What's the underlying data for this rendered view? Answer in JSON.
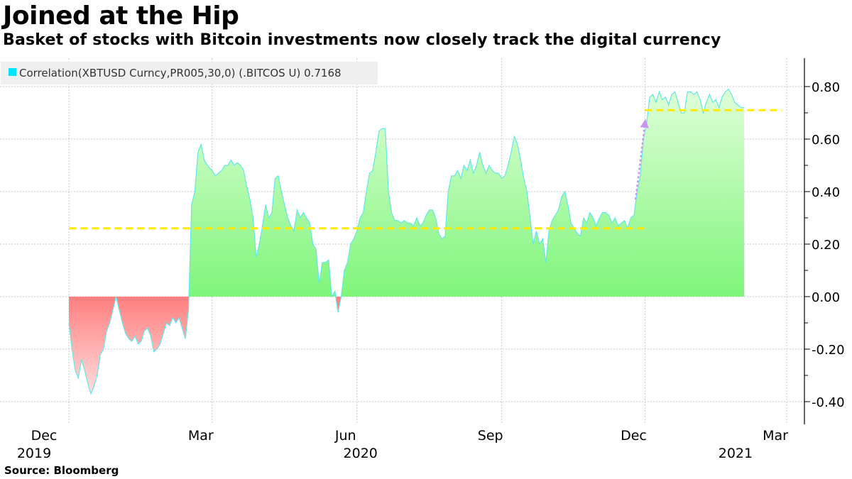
{
  "header": {
    "title": "Joined at the Hip",
    "subtitle": "Basket of stocks with Bitcoin investments now closely track the digital currency"
  },
  "footer": {
    "source": "Source: Bloomberg"
  },
  "colors": {
    "positive_fill_top": "#e0ffd9",
    "positive_fill_bottom": "#7ff57a",
    "negative_fill_top": "#ff7f7f",
    "negative_fill_bottom": "#ffe5e5",
    "line": "#60e8e8",
    "reference_line": "#ffea00",
    "arrow": "#c896f0",
    "legend_swatch": "#00e5ff",
    "legend_bg": "#efefef",
    "grid": "#c8c8c8"
  },
  "chart_data": {
    "type": "area",
    "legend": {
      "label": "Correlation(XBTUSD Curncy,PR005,30,0) (.BITCOS U) 0.7168",
      "placement": "top-left"
    },
    "y_axis": {
      "position": "right",
      "range": [
        -0.48,
        0.9
      ],
      "ticks": [
        -0.4,
        -0.2,
        0.0,
        0.2,
        0.4,
        0.6,
        0.8
      ],
      "tick_labels": [
        "-0.40",
        "-0.20",
        "0.00",
        "0.20",
        "0.40",
        "0.60",
        "0.80"
      ]
    },
    "x_axis": {
      "range": [
        "2019-11-15",
        "2021-03-01"
      ],
      "tick_labels": [
        {
          "date": "2019-12-01",
          "label": "Dec",
          "year": "2019"
        },
        {
          "date": "2020-03-01",
          "label": "Mar",
          "year": ""
        },
        {
          "date": "2020-06-01",
          "label": "Jun",
          "year": "2020"
        },
        {
          "date": "2020-09-01",
          "label": "Sep",
          "year": ""
        },
        {
          "date": "2020-12-01",
          "label": "Dec",
          "year": ""
        },
        {
          "date": "2021-03-01",
          "label": "Mar",
          "year": "2021"
        }
      ]
    },
    "grid": true,
    "reference_lines": [
      {
        "value": 0.26,
        "from": "2019-12-01",
        "to": "2020-12-01"
      },
      {
        "value": 0.71,
        "from": "2020-12-01",
        "to": "2021-02-26"
      }
    ],
    "annotation_arrow": {
      "from": [
        "2020-11-25",
        0.37
      ],
      "to": [
        "2020-12-01",
        0.66
      ]
    },
    "series": [
      {
        "name": "Correlation(XBTUSD Curncy,PR005,30,0) (.BITCOS U)",
        "last_value": 0.7168,
        "points": [
          [
            "2019-12-01",
            -0.1
          ],
          [
            "2019-12-03",
            -0.2
          ],
          [
            "2019-12-05",
            -0.28
          ],
          [
            "2019-12-07",
            -0.31
          ],
          [
            "2019-12-09",
            -0.24
          ],
          [
            "2019-12-11",
            -0.28
          ],
          [
            "2019-12-13",
            -0.33
          ],
          [
            "2019-12-15",
            -0.37
          ],
          [
            "2019-12-17",
            -0.34
          ],
          [
            "2019-12-19",
            -0.3
          ],
          [
            "2019-12-21",
            -0.22
          ],
          [
            "2019-12-23",
            -0.2
          ],
          [
            "2019-12-25",
            -0.13
          ],
          [
            "2019-12-27",
            -0.1
          ],
          [
            "2019-12-29",
            -0.05
          ],
          [
            "2019-12-31",
            0.0
          ],
          [
            "2020-01-02",
            -0.05
          ],
          [
            "2020-01-04",
            -0.1
          ],
          [
            "2020-01-06",
            -0.14
          ],
          [
            "2020-01-08",
            -0.16
          ],
          [
            "2020-01-10",
            -0.17
          ],
          [
            "2020-01-12",
            -0.15
          ],
          [
            "2020-01-14",
            -0.18
          ],
          [
            "2020-01-16",
            -0.17
          ],
          [
            "2020-01-18",
            -0.13
          ],
          [
            "2020-01-20",
            -0.12
          ],
          [
            "2020-01-22",
            -0.15
          ],
          [
            "2020-01-24",
            -0.21
          ],
          [
            "2020-01-26",
            -0.2
          ],
          [
            "2020-01-28",
            -0.18
          ],
          [
            "2020-01-30",
            -0.14
          ],
          [
            "2020-02-01",
            -0.1
          ],
          [
            "2020-02-03",
            -0.11
          ],
          [
            "2020-02-05",
            -0.08
          ],
          [
            "2020-02-07",
            -0.1
          ],
          [
            "2020-02-09",
            -0.08
          ],
          [
            "2020-02-11",
            -0.12
          ],
          [
            "2020-02-13",
            -0.16
          ],
          [
            "2020-02-15",
            -0.05
          ],
          [
            "2020-02-17",
            0.35
          ],
          [
            "2020-02-19",
            0.4
          ],
          [
            "2020-02-21",
            0.55
          ],
          [
            "2020-02-23",
            0.58
          ],
          [
            "2020-02-25",
            0.52
          ],
          [
            "2020-02-27",
            0.5
          ],
          [
            "2020-03-01",
            0.48
          ],
          [
            "2020-03-03",
            0.46
          ],
          [
            "2020-03-05",
            0.47
          ],
          [
            "2020-03-07",
            0.48
          ],
          [
            "2020-03-09",
            0.5
          ],
          [
            "2020-03-11",
            0.5
          ],
          [
            "2020-03-13",
            0.52
          ],
          [
            "2020-03-15",
            0.5
          ],
          [
            "2020-03-17",
            0.51
          ],
          [
            "2020-03-19",
            0.5
          ],
          [
            "2020-03-21",
            0.48
          ],
          [
            "2020-03-23",
            0.42
          ],
          [
            "2020-03-25",
            0.37
          ],
          [
            "2020-03-27",
            0.3
          ],
          [
            "2020-03-29",
            0.15
          ],
          [
            "2020-03-31",
            0.2
          ],
          [
            "2020-04-02",
            0.27
          ],
          [
            "2020-04-04",
            0.35
          ],
          [
            "2020-04-06",
            0.3
          ],
          [
            "2020-04-08",
            0.32
          ],
          [
            "2020-04-10",
            0.45
          ],
          [
            "2020-04-12",
            0.46
          ],
          [
            "2020-04-14",
            0.4
          ],
          [
            "2020-04-16",
            0.35
          ],
          [
            "2020-04-18",
            0.3
          ],
          [
            "2020-04-20",
            0.27
          ],
          [
            "2020-04-22",
            0.25
          ],
          [
            "2020-04-24",
            0.33
          ],
          [
            "2020-04-26",
            0.3
          ],
          [
            "2020-04-28",
            0.32
          ],
          [
            "2020-04-30",
            0.3
          ],
          [
            "2020-05-02",
            0.28
          ],
          [
            "2020-05-04",
            0.2
          ],
          [
            "2020-05-06",
            0.18
          ],
          [
            "2020-05-08",
            0.05
          ],
          [
            "2020-05-10",
            0.13
          ],
          [
            "2020-05-12",
            0.13
          ],
          [
            "2020-05-14",
            0.14
          ],
          [
            "2020-05-16",
            0.0
          ],
          [
            "2020-05-18",
            0.02
          ],
          [
            "2020-05-20",
            -0.06
          ],
          [
            "2020-05-22",
            0.0
          ],
          [
            "2020-05-24",
            0.1
          ],
          [
            "2020-05-26",
            0.13
          ],
          [
            "2020-05-28",
            0.2
          ],
          [
            "2020-05-30",
            0.22
          ],
          [
            "2020-06-01",
            0.25
          ],
          [
            "2020-06-03",
            0.3
          ],
          [
            "2020-06-05",
            0.32
          ],
          [
            "2020-06-07",
            0.4
          ],
          [
            "2020-06-09",
            0.47
          ],
          [
            "2020-06-11",
            0.48
          ],
          [
            "2020-06-13",
            0.55
          ],
          [
            "2020-06-15",
            0.63
          ],
          [
            "2020-06-17",
            0.64
          ],
          [
            "2020-06-19",
            0.64
          ],
          [
            "2020-06-21",
            0.4
          ],
          [
            "2020-06-23",
            0.32
          ],
          [
            "2020-06-25",
            0.29
          ],
          [
            "2020-06-27",
            0.29
          ],
          [
            "2020-06-29",
            0.28
          ],
          [
            "2020-07-01",
            0.29
          ],
          [
            "2020-07-03",
            0.28
          ],
          [
            "2020-07-05",
            0.28
          ],
          [
            "2020-07-07",
            0.27
          ],
          [
            "2020-07-09",
            0.3
          ],
          [
            "2020-07-11",
            0.27
          ],
          [
            "2020-07-13",
            0.28
          ],
          [
            "2020-07-15",
            0.31
          ],
          [
            "2020-07-17",
            0.33
          ],
          [
            "2020-07-19",
            0.33
          ],
          [
            "2020-07-21",
            0.3
          ],
          [
            "2020-07-23",
            0.24
          ],
          [
            "2020-07-25",
            0.22
          ],
          [
            "2020-07-27",
            0.23
          ],
          [
            "2020-07-29",
            0.4
          ],
          [
            "2020-07-31",
            0.46
          ],
          [
            "2020-08-02",
            0.46
          ],
          [
            "2020-08-04",
            0.48
          ],
          [
            "2020-08-06",
            0.45
          ],
          [
            "2020-08-08",
            0.5
          ],
          [
            "2020-08-10",
            0.48
          ],
          [
            "2020-08-12",
            0.52
          ],
          [
            "2020-08-14",
            0.47
          ],
          [
            "2020-08-16",
            0.5
          ],
          [
            "2020-08-18",
            0.55
          ],
          [
            "2020-08-20",
            0.5
          ],
          [
            "2020-08-22",
            0.47
          ],
          [
            "2020-08-24",
            0.5
          ],
          [
            "2020-08-26",
            0.48
          ],
          [
            "2020-08-28",
            0.47
          ],
          [
            "2020-08-30",
            0.47
          ],
          [
            "2020-09-01",
            0.45
          ],
          [
            "2020-09-03",
            0.46
          ],
          [
            "2020-09-05",
            0.5
          ],
          [
            "2020-09-07",
            0.55
          ],
          [
            "2020-09-09",
            0.61
          ],
          [
            "2020-09-11",
            0.58
          ],
          [
            "2020-09-13",
            0.52
          ],
          [
            "2020-09-15",
            0.45
          ],
          [
            "2020-09-17",
            0.4
          ],
          [
            "2020-09-19",
            0.3
          ],
          [
            "2020-09-21",
            0.2
          ],
          [
            "2020-09-23",
            0.25
          ],
          [
            "2020-09-25",
            0.2
          ],
          [
            "2020-09-27",
            0.22
          ],
          [
            "2020-09-29",
            0.13
          ],
          [
            "2020-10-01",
            0.25
          ],
          [
            "2020-10-03",
            0.29
          ],
          [
            "2020-10-05",
            0.31
          ],
          [
            "2020-10-07",
            0.33
          ],
          [
            "2020-10-09",
            0.38
          ],
          [
            "2020-10-11",
            0.4
          ],
          [
            "2020-10-13",
            0.35
          ],
          [
            "2020-10-15",
            0.28
          ],
          [
            "2020-10-17",
            0.26
          ],
          [
            "2020-10-19",
            0.24
          ],
          [
            "2020-10-21",
            0.23
          ],
          [
            "2020-10-23",
            0.3
          ],
          [
            "2020-10-25",
            0.28
          ],
          [
            "2020-10-27",
            0.32
          ],
          [
            "2020-10-29",
            0.3
          ],
          [
            "2020-10-31",
            0.27
          ],
          [
            "2020-11-02",
            0.3
          ],
          [
            "2020-11-04",
            0.32
          ],
          [
            "2020-11-06",
            0.32
          ],
          [
            "2020-11-08",
            0.31
          ],
          [
            "2020-11-10",
            0.28
          ],
          [
            "2020-11-12",
            0.3
          ],
          [
            "2020-11-14",
            0.27
          ],
          [
            "2020-11-16",
            0.28
          ],
          [
            "2020-11-18",
            0.29
          ],
          [
            "2020-11-20",
            0.26
          ],
          [
            "2020-11-22",
            0.3
          ],
          [
            "2020-11-24",
            0.31
          ],
          [
            "2020-11-26",
            0.4
          ],
          [
            "2020-11-28",
            0.46
          ],
          [
            "2020-11-30",
            0.6
          ],
          [
            "2020-12-02",
            0.66
          ],
          [
            "2020-12-04",
            0.76
          ],
          [
            "2020-12-06",
            0.77
          ],
          [
            "2020-12-08",
            0.74
          ],
          [
            "2020-12-10",
            0.78
          ],
          [
            "2020-12-12",
            0.75
          ],
          [
            "2020-12-14",
            0.76
          ],
          [
            "2020-12-16",
            0.73
          ],
          [
            "2020-12-18",
            0.77
          ],
          [
            "2020-12-20",
            0.78
          ],
          [
            "2020-12-22",
            0.74
          ],
          [
            "2020-12-24",
            0.7
          ],
          [
            "2020-12-26",
            0.7
          ],
          [
            "2020-12-28",
            0.78
          ],
          [
            "2020-12-30",
            0.78
          ],
          [
            "2021-01-01",
            0.77
          ],
          [
            "2021-01-03",
            0.78
          ],
          [
            "2021-01-05",
            0.75
          ],
          [
            "2021-01-07",
            0.7
          ],
          [
            "2021-01-09",
            0.74
          ],
          [
            "2021-01-11",
            0.77
          ],
          [
            "2021-01-13",
            0.74
          ],
          [
            "2021-01-15",
            0.75
          ],
          [
            "2021-01-17",
            0.72
          ],
          [
            "2021-01-19",
            0.76
          ],
          [
            "2021-01-21",
            0.78
          ],
          [
            "2021-01-23",
            0.79
          ],
          [
            "2021-01-25",
            0.77
          ],
          [
            "2021-01-27",
            0.74
          ],
          [
            "2021-01-29",
            0.73
          ],
          [
            "2021-01-31",
            0.72
          ],
          [
            "2021-02-02",
            0.72
          ]
        ]
      }
    ]
  }
}
